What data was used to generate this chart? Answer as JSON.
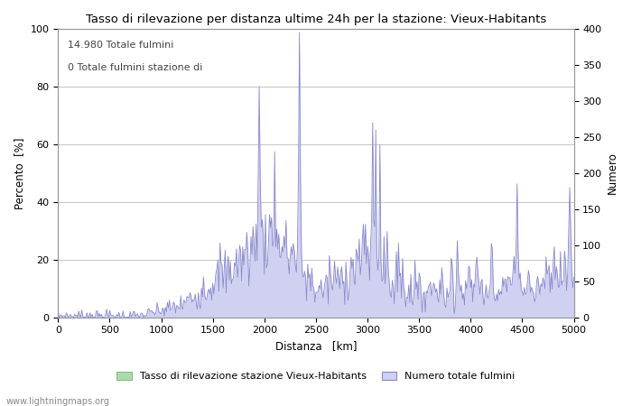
{
  "title": "Tasso di rilevazione per distanza ultime 24h per la stazione: Vieux-Habitants",
  "xlabel": "Distanza   [km]",
  "ylabel_left": "Percento  [%]",
  "ylabel_right": "Numero",
  "annotation_line1": "14.980 Totale fulmini",
  "annotation_line2": "0 Totale fulmini stazione di",
  "legend_label1": "Tasso di rilevazione stazione Vieux-Habitants",
  "legend_label2": "Numero totale fulmini",
  "footer": "www.lightningmaps.org",
  "xlim": [
    0,
    5000
  ],
  "ylim_left": [
    0,
    100
  ],
  "ylim_right": [
    0,
    400
  ],
  "xticks": [
    0,
    500,
    1000,
    1500,
    2000,
    2500,
    3000,
    3500,
    4000,
    4500,
    5000
  ],
  "yticks_left": [
    0,
    20,
    40,
    60,
    80,
    100
  ],
  "yticks_right": [
    0,
    50,
    100,
    150,
    200,
    250,
    300,
    350,
    400
  ],
  "color_fill_green": "#aaddaa",
  "color_line_green": "#88bb88",
  "color_fill_blue": "#d0d0f0",
  "color_line_blue": "#8888cc",
  "background_color": "#ffffff",
  "grid_color": "#bbbbbb",
  "annotation_color": "#444444",
  "footer_color": "#888888"
}
